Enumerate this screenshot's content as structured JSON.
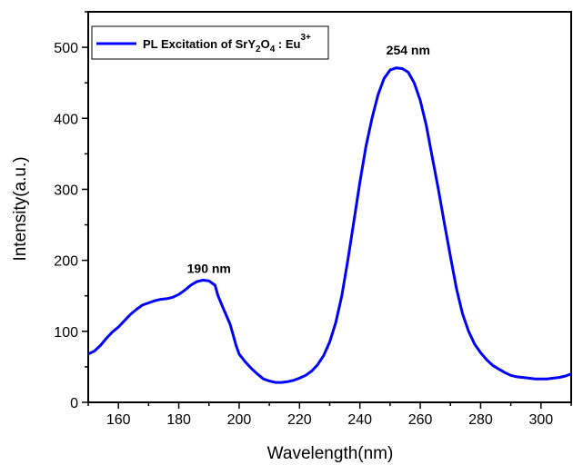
{
  "chart_data": {
    "type": "line",
    "title": "",
    "xlabel": "Wavelength(nm)",
    "ylabel": "Intensity(a.u.)",
    "xlim": [
      150,
      310
    ],
    "ylim": [
      0,
      550
    ],
    "x_ticks": [
      160,
      180,
      200,
      220,
      240,
      260,
      280,
      300
    ],
    "y_ticks": [
      0,
      100,
      200,
      300,
      400,
      500
    ],
    "grid": false,
    "legend_position": "top-left",
    "series": [
      {
        "name": "PL Excitation of SrY2O4 : Eu3+",
        "legend_parts": {
          "base": "PL Excitation of SrY",
          "sub1": "2",
          "mid": "O",
          "sub2": "4",
          "tail": " : Eu",
          "sup": "3+"
        },
        "color": "#0000ff",
        "x": [
          150,
          152,
          154,
          156,
          158,
          160,
          162,
          164,
          166,
          168,
          170,
          172,
          174,
          176,
          178,
          180,
          182,
          184,
          186,
          188,
          190,
          192,
          193,
          195,
          197,
          198,
          199,
          200,
          202,
          204,
          206,
          208,
          210,
          212,
          214,
          216,
          218,
          220,
          222,
          224,
          226,
          228,
          230,
          232,
          234,
          236,
          238,
          240,
          242,
          244,
          246,
          248,
          250,
          252,
          254,
          256,
          258,
          260,
          262,
          264,
          266,
          268,
          270,
          272,
          274,
          276,
          278,
          280,
          282,
          284,
          286,
          288,
          290,
          292,
          294,
          296,
          298,
          300,
          302,
          304,
          306,
          308,
          310
        ],
        "values": [
          68,
          72,
          80,
          90,
          99,
          106,
          115,
          124,
          131,
          137,
          140,
          143,
          145,
          146,
          148,
          152,
          158,
          165,
          170,
          172,
          171,
          165,
          150,
          130,
          110,
          95,
          80,
          68,
          57,
          48,
          40,
          33,
          30,
          28,
          28,
          29,
          31,
          34,
          38,
          44,
          53,
          66,
          85,
          112,
          150,
          200,
          255,
          310,
          360,
          400,
          433,
          456,
          468,
          471,
          470,
          465,
          450,
          425,
          390,
          345,
          300,
          252,
          205,
          160,
          125,
          100,
          82,
          70,
          60,
          52,
          47,
          42,
          38,
          36,
          35,
          34,
          33,
          33,
          33,
          34,
          35,
          37,
          40
        ]
      }
    ],
    "annotations": [
      {
        "text": "190 nm",
        "x": 190,
        "y": 182
      },
      {
        "text": "254 nm",
        "x": 256,
        "y": 490
      }
    ]
  }
}
